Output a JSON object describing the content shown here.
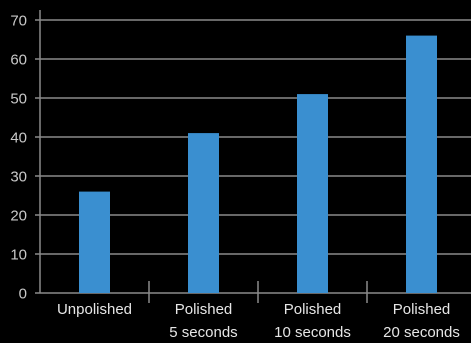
{
  "chart_data": {
    "type": "bar",
    "categories": [
      [
        "Unpolished"
      ],
      [
        "Polished",
        "5 seconds"
      ],
      [
        "Polished",
        "10 seconds"
      ],
      [
        "Polished",
        "20 seconds"
      ]
    ],
    "values": [
      26,
      41,
      51,
      66
    ],
    "ylim": [
      0,
      70
    ],
    "yticks": [
      0,
      10,
      20,
      30,
      40,
      50,
      60,
      70
    ],
    "title": "",
    "xlabel": "",
    "ylabel": "",
    "grid": true,
    "legend": "none",
    "colors": {
      "background": "#000000",
      "bar": "#3a8fd0",
      "grid": "#8a8a8a",
      "axis": "#8a8a8a",
      "text": "#d9d9d9"
    }
  }
}
